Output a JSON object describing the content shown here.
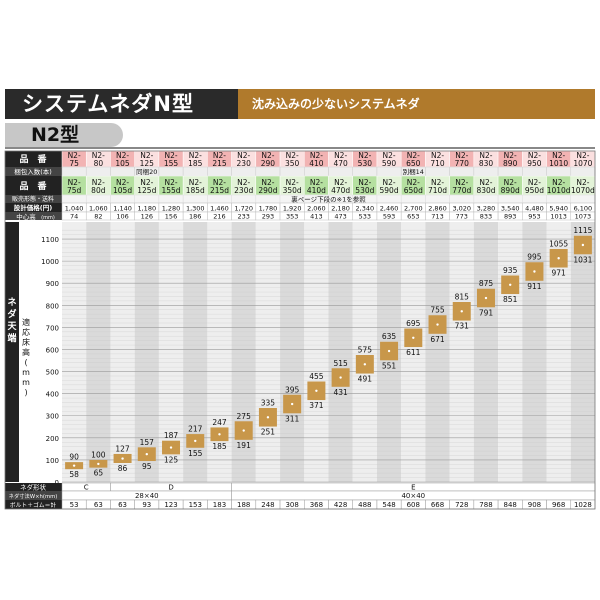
{
  "header": {
    "title": "システムネダN型",
    "subtitle": "沈み込みの少ないシステムネダ",
    "model": "N2型"
  },
  "labels": {
    "hinban": "品　番",
    "konpo": "梱包入数(本)",
    "hinban2": "品　番",
    "hanbai": "販売形態・送料",
    "hanbai_note": "裏ページ下段の※1を参照",
    "kakaku": "設計価格(円)",
    "chushin": "中心高",
    "chushin_unit": "(mm)",
    "neda_tenba": "ネダ天端",
    "tekio": "適応床高",
    "tekio_unit": "(mm)",
    "keijo": "ネダ形状",
    "sunpo": "ネダ寸法W×h(mm)",
    "bolt": "ボルト＋ゴム＝計"
  },
  "konpo": {
    "group1": "同梱20",
    "group2": "別梱14"
  },
  "products": [
    {
      "code": "N2-75",
      "d": "N2-75d",
      "price": "1,040",
      "center": "74",
      "max": "90",
      "min": "58",
      "bolt": "53"
    },
    {
      "code": "N2-80",
      "d": "N2-80d",
      "price": "1,060",
      "center": "82",
      "max": "100",
      "min": "65",
      "bolt": "63"
    },
    {
      "code": "N2-105",
      "d": "N2-105d",
      "price": "1,140",
      "center": "106",
      "max": "127",
      "min": "86",
      "bolt": "63"
    },
    {
      "code": "N2-125",
      "d": "N2-125d",
      "price": "1,180",
      "center": "126",
      "max": "157",
      "min": "95",
      "bolt": "93"
    },
    {
      "code": "N2-155",
      "d": "N2-155d",
      "price": "1,280",
      "center": "156",
      "max": "187",
      "min": "125",
      "bolt": "123"
    },
    {
      "code": "N2-185",
      "d": "N2-185d",
      "price": "1,300",
      "center": "186",
      "max": "217",
      "min": "155",
      "bolt": "153"
    },
    {
      "code": "N2-215",
      "d": "N2-215d",
      "price": "1,460",
      "center": "216",
      "max": "247",
      "min": "185",
      "bolt": "183"
    },
    {
      "code": "N2-230",
      "d": "N2-230d",
      "price": "1,720",
      "center": "233",
      "max": "275",
      "min": "191",
      "bolt": "188"
    },
    {
      "code": "N2-290",
      "d": "N2-290d",
      "price": "1,780",
      "center": "293",
      "max": "335",
      "min": "251",
      "bolt": "248"
    },
    {
      "code": "N2-350",
      "d": "N2-350d",
      "price": "1,920",
      "center": "353",
      "max": "395",
      "min": "311",
      "bolt": "308"
    },
    {
      "code": "N2-410",
      "d": "N2-410d",
      "price": "2,060",
      "center": "413",
      "max": "455",
      "min": "371",
      "bolt": "368"
    },
    {
      "code": "N2-470",
      "d": "N2-470d",
      "price": "2,180",
      "center": "473",
      "max": "515",
      "min": "431",
      "bolt": "428"
    },
    {
      "code": "N2-530",
      "d": "N2-530d",
      "price": "2,340",
      "center": "533",
      "max": "575",
      "min": "491",
      "bolt": "488"
    },
    {
      "code": "N2-590",
      "d": "N2-590d",
      "price": "2,460",
      "center": "593",
      "max": "635",
      "min": "551",
      "bolt": "548"
    },
    {
      "code": "N2-650",
      "d": "N2-650d",
      "price": "2,700",
      "center": "653",
      "max": "695",
      "min": "611",
      "bolt": "608"
    },
    {
      "code": "N2-710",
      "d": "N2-710d",
      "price": "2,860",
      "center": "713",
      "max": "755",
      "min": "671",
      "bolt": "668"
    },
    {
      "code": "N2-770",
      "d": "N2-770d",
      "price": "3,020",
      "center": "773",
      "max": "815",
      "min": "731",
      "bolt": "728"
    },
    {
      "code": "N2-830",
      "d": "N2-830d",
      "price": "3,280",
      "center": "833",
      "max": "875",
      "min": "791",
      "bolt": "788"
    },
    {
      "code": "N2-890",
      "d": "N2-890d",
      "price": "3,540",
      "center": "893",
      "max": "935",
      "min": "851",
      "bolt": "848"
    },
    {
      "code": "N2-950",
      "d": "N2-950d",
      "price": "4,480",
      "center": "953",
      "max": "995",
      "min": "911",
      "bolt": "908"
    },
    {
      "code": "N2-1010",
      "d": "N2-1010d",
      "price": "5,940",
      "center": "1013",
      "max": "1055",
      "min": "971",
      "bolt": "968"
    },
    {
      "code": "N2-1070",
      "d": "N2-1070d",
      "price": "6,100",
      "center": "1073",
      "max": "1115",
      "min": "1031",
      "bolt": "1028"
    }
  ],
  "shapes": [
    {
      "label": "C",
      "span": 2
    },
    {
      "label": "D",
      "span": 5
    },
    {
      "label": "E",
      "span": 15
    }
  ],
  "sizes": [
    {
      "label": "28×40",
      "span": 7
    },
    {
      "label": "40×40",
      "span": 15
    }
  ],
  "chart_data": {
    "type": "range",
    "ylim": [
      0,
      1150
    ],
    "yticks": [
      0,
      100,
      200,
      300,
      400,
      500,
      600,
      700,
      800,
      900,
      1000,
      1100
    ],
    "grid": true,
    "categories": [
      "N2-75",
      "N2-80",
      "N2-105",
      "N2-125",
      "N2-155",
      "N2-185",
      "N2-215",
      "N2-230",
      "N2-290",
      "N2-350",
      "N2-410",
      "N2-470",
      "N2-530",
      "N2-590",
      "N2-650",
      "N2-710",
      "N2-770",
      "N2-830",
      "N2-890",
      "N2-950",
      "N2-1010",
      "N2-1070"
    ],
    "min": [
      58,
      65,
      86,
      95,
      125,
      155,
      185,
      191,
      251,
      311,
      371,
      431,
      491,
      551,
      611,
      671,
      731,
      791,
      851,
      911,
      971,
      1031
    ],
    "max": [
      90,
      100,
      127,
      157,
      187,
      217,
      247,
      275,
      335,
      395,
      455,
      515,
      575,
      635,
      695,
      755,
      815,
      875,
      935,
      995,
      1055,
      1115
    ],
    "center": [
      74,
      82,
      106,
      126,
      156,
      186,
      216,
      233,
      293,
      353,
      413,
      473,
      533,
      593,
      653,
      713,
      773,
      833,
      893,
      953,
      1013,
      1073
    ]
  },
  "colors": {
    "pink": "#f2b3b3",
    "green": "#b5e0a0",
    "box": "#c8974a",
    "dark": "#222222",
    "accent": "#b07a2c"
  }
}
